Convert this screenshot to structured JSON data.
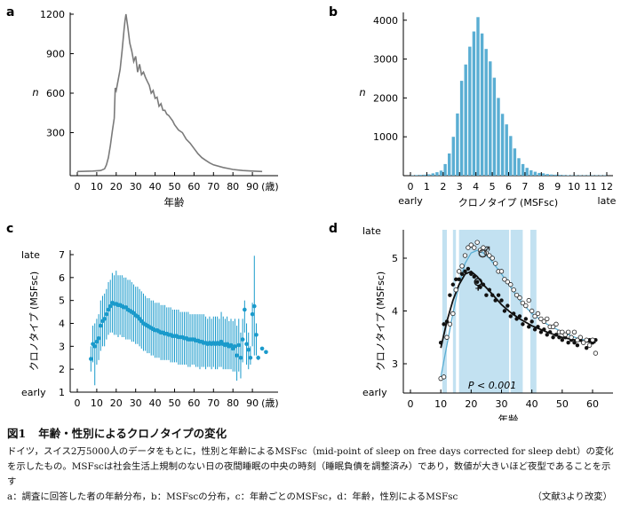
{
  "chart_data": [
    {
      "panel": "a",
      "type": "line",
      "xlabel": "年齢",
      "ylabel": "n",
      "xunit": "(歳)",
      "xlim": [
        0,
        100
      ],
      "ylim": [
        0,
        1200
      ],
      "xticks": [
        "0",
        "10",
        "20",
        "30",
        "40",
        "50",
        "60",
        "70",
        "80",
        "90"
      ],
      "yticks": [
        "300",
        "600",
        "900",
        "1200"
      ],
      "color": "#7a7a7a",
      "x": [
        0,
        4,
        8,
        12,
        14,
        15,
        16,
        17,
        18,
        19,
        19.5,
        20,
        21,
        22,
        23,
        24,
        24.5,
        25,
        26,
        27,
        28,
        29,
        30,
        31,
        32,
        33,
        34,
        35,
        36,
        37,
        38,
        39,
        40,
        41,
        42,
        43,
        44,
        45,
        46,
        47,
        48,
        49,
        50,
        52,
        54,
        56,
        58,
        60,
        62,
        64,
        66,
        68,
        70,
        75,
        80,
        85,
        90,
        95
      ],
      "y": [
        5,
        6,
        8,
        12,
        25,
        55,
        110,
        200,
        310,
        410,
        640,
        620,
        700,
        780,
        920,
        1080,
        1150,
        1200,
        1100,
        980,
        920,
        840,
        880,
        760,
        820,
        740,
        760,
        720,
        690,
        660,
        600,
        620,
        560,
        570,
        500,
        520,
        470,
        470,
        440,
        430,
        410,
        390,
        360,
        320,
        300,
        250,
        220,
        180,
        140,
        110,
        90,
        70,
        55,
        35,
        20,
        12,
        8,
        5
      ]
    },
    {
      "panel": "b",
      "type": "bar",
      "xlabel": "クロノタイプ (MSFsc)",
      "ylabel": "n",
      "xlim": [
        0,
        12
      ],
      "ylim": [
        0,
        4200
      ],
      "xticks": [
        "0",
        "1",
        "2",
        "3",
        "4",
        "5",
        "6",
        "7",
        "8",
        "9",
        "10",
        "11",
        "12"
      ],
      "yticks": [
        "1000",
        "2000",
        "3000",
        "4000"
      ],
      "xmin_label": "early",
      "xmax_label": "late",
      "color": "#5aaed3",
      "bin_width": 0.25,
      "x": [
        0,
        0.25,
        0.5,
        0.75,
        1.0,
        1.25,
        1.5,
        1.75,
        2.0,
        2.25,
        2.5,
        2.75,
        3.0,
        3.25,
        3.5,
        3.75,
        4.0,
        4.25,
        4.5,
        4.75,
        5.0,
        5.25,
        5.5,
        5.75,
        6.0,
        6.25,
        6.5,
        6.75,
        7.0,
        7.25,
        7.5,
        7.75,
        8.0,
        8.25,
        8.5,
        8.75,
        9.0,
        9.25,
        9.5,
        9.75,
        10.0,
        10.25,
        10.5,
        10.75,
        11.0,
        11.25,
        11.5,
        11.75
      ],
      "values": [
        10,
        15,
        20,
        25,
        35,
        60,
        90,
        130,
        300,
        570,
        1000,
        1600,
        2440,
        2860,
        3320,
        3710,
        4080,
        3660,
        3260,
        2940,
        2520,
        2000,
        1590,
        1320,
        1020,
        700,
        450,
        300,
        200,
        140,
        100,
        70,
        60,
        40,
        30,
        25,
        20,
        15,
        12,
        10,
        10,
        10,
        8,
        8,
        8,
        8,
        8,
        8
      ]
    },
    {
      "panel": "c",
      "type": "scatter",
      "xlabel": "年齢",
      "ylabel": "クロノタイプ (MSFsc)",
      "xunit": "(歳)",
      "xlim": [
        0,
        100
      ],
      "ylim": [
        1,
        7
      ],
      "xticks": [
        "0",
        "10",
        "20",
        "30",
        "40",
        "50",
        "60",
        "70",
        "80",
        "90"
      ],
      "yticks": [
        "1",
        "2",
        "3",
        "4",
        "5",
        "6",
        "7"
      ],
      "ymin_label": "early",
      "ymax_label": "late",
      "color": "#1a9acb",
      "points": [
        [
          7,
          2.45,
          1.9,
          3.0
        ],
        [
          8,
          3.1,
          2.3,
          3.9
        ],
        [
          9,
          3.0,
          1.3,
          4.0
        ],
        [
          10,
          3.2,
          2.2,
          4.2
        ],
        [
          11,
          3.35,
          2.4,
          4.4
        ],
        [
          12,
          3.9,
          2.8,
          5.0
        ],
        [
          13,
          4.1,
          3.0,
          5.2
        ],
        [
          14,
          4.2,
          3.0,
          5.3
        ],
        [
          15,
          4.4,
          3.3,
          5.5
        ],
        [
          16,
          4.6,
          3.5,
          5.8
        ],
        [
          17,
          4.75,
          3.6,
          5.9
        ],
        [
          18,
          4.9,
          3.6,
          6.2
        ],
        [
          19,
          4.85,
          3.5,
          6.1
        ],
        [
          20,
          4.85,
          3.5,
          6.3
        ],
        [
          21,
          4.8,
          3.4,
          6.1
        ],
        [
          22,
          4.8,
          3.5,
          6.1
        ],
        [
          23,
          4.75,
          3.4,
          6.1
        ],
        [
          24,
          4.7,
          3.4,
          6.0
        ],
        [
          25,
          4.7,
          3.3,
          6.0
        ],
        [
          26,
          4.6,
          3.3,
          5.9
        ],
        [
          27,
          4.55,
          3.3,
          5.9
        ],
        [
          28,
          4.5,
          3.2,
          5.8
        ],
        [
          29,
          4.45,
          3.2,
          5.7
        ],
        [
          30,
          4.35,
          3.1,
          5.6
        ],
        [
          31,
          4.3,
          3.1,
          5.6
        ],
        [
          32,
          4.2,
          3.0,
          5.5
        ],
        [
          33,
          4.1,
          2.9,
          5.4
        ],
        [
          34,
          4.0,
          2.8,
          5.3
        ],
        [
          35,
          3.95,
          2.8,
          5.2
        ],
        [
          36,
          3.9,
          2.7,
          5.1
        ],
        [
          37,
          3.85,
          2.7,
          5.1
        ],
        [
          38,
          3.8,
          2.6,
          5.0
        ],
        [
          39,
          3.75,
          2.6,
          5.0
        ],
        [
          40,
          3.7,
          2.5,
          4.9
        ],
        [
          41,
          3.7,
          2.5,
          4.9
        ],
        [
          42,
          3.65,
          2.5,
          4.9
        ],
        [
          43,
          3.6,
          2.4,
          4.8
        ],
        [
          44,
          3.6,
          2.4,
          4.8
        ],
        [
          45,
          3.55,
          2.4,
          4.8
        ],
        [
          46,
          3.55,
          2.4,
          4.7
        ],
        [
          47,
          3.5,
          2.4,
          4.7
        ],
        [
          48,
          3.5,
          2.3,
          4.7
        ],
        [
          49,
          3.45,
          2.3,
          4.6
        ],
        [
          50,
          3.45,
          2.3,
          4.6
        ],
        [
          51,
          3.45,
          2.3,
          4.6
        ],
        [
          52,
          3.4,
          2.2,
          4.6
        ],
        [
          53,
          3.4,
          2.2,
          4.5
        ],
        [
          54,
          3.4,
          2.2,
          4.5
        ],
        [
          55,
          3.35,
          2.2,
          4.5
        ],
        [
          56,
          3.35,
          2.2,
          4.5
        ],
        [
          57,
          3.3,
          2.1,
          4.5
        ],
        [
          58,
          3.3,
          2.1,
          4.4
        ],
        [
          59,
          3.3,
          2.2,
          4.4
        ],
        [
          60,
          3.3,
          2.2,
          4.4
        ],
        [
          61,
          3.25,
          2.1,
          4.4
        ],
        [
          62,
          3.25,
          2.1,
          4.4
        ],
        [
          63,
          3.2,
          2.0,
          4.4
        ],
        [
          64,
          3.2,
          2.1,
          4.4
        ],
        [
          65,
          3.15,
          2.1,
          4.4
        ],
        [
          66,
          3.15,
          2.0,
          4.3
        ],
        [
          67,
          3.1,
          2.1,
          4.2
        ],
        [
          68,
          3.15,
          2.1,
          4.3
        ],
        [
          69,
          3.1,
          2.0,
          4.2
        ],
        [
          70,
          3.15,
          2.1,
          4.3
        ],
        [
          71,
          3.1,
          2.0,
          4.3
        ],
        [
          72,
          3.15,
          2.0,
          4.3
        ],
        [
          73,
          3.1,
          2.1,
          4.2
        ],
        [
          74,
          3.2,
          2.1,
          4.5
        ],
        [
          75,
          3.1,
          2.0,
          4.3
        ],
        [
          76,
          3.05,
          2.0,
          4.2
        ],
        [
          77,
          3.1,
          2.0,
          4.3
        ],
        [
          78,
          3.0,
          2.0,
          4.1
        ],
        [
          79,
          3.05,
          2.0,
          4.2
        ],
        [
          80,
          2.9,
          1.9,
          4.1
        ],
        [
          81,
          3.0,
          1.9,
          4.2
        ],
        [
          82,
          2.6,
          1.5,
          3.9
        ],
        [
          83,
          3.05,
          1.9,
          4.2
        ],
        [
          84,
          2.5,
          1.6,
          3.6
        ],
        [
          85,
          3.3,
          2.3,
          4.2
        ],
        [
          86,
          4.6,
          3.6,
          5.0
        ],
        [
          87,
          3.1,
          2.2,
          4.0
        ],
        [
          88,
          2.85,
          2.0,
          3.6
        ],
        [
          89,
          2.5,
          2.2,
          3.0
        ],
        [
          90,
          4.4,
          3.0,
          4.9
        ],
        [
          91,
          4.75,
          2.6,
          6.95
        ],
        [
          92,
          3.5,
          2.6,
          4.0
        ],
        [
          93,
          2.5,
          2.4,
          2.6
        ],
        [
          95,
          2.9,
          2.9,
          2.9
        ],
        [
          97,
          2.75,
          2.75,
          2.75
        ]
      ]
    },
    {
      "panel": "d",
      "type": "scatter",
      "xlabel": "年齢",
      "ylabel": "クロノタイプ (MSFsc)",
      "xlim": [
        0,
        62
      ],
      "ylim": [
        2.5,
        5.6
      ],
      "xticks": [
        "0",
        "10",
        "20",
        "30",
        "40",
        "50",
        "60"
      ],
      "yticks": [
        "3",
        "4",
        "5"
      ],
      "ymin_label": "early",
      "ymax_label": "late",
      "annotation": "P < 0.001",
      "significance_color": "#c2e1f1",
      "significance_bands": [
        [
          10.5,
          12
        ],
        [
          14,
          15
        ],
        [
          16,
          32.5
        ],
        [
          33,
          37
        ],
        [
          39.5,
          41.5
        ]
      ],
      "series": [
        {
          "name": "♂",
          "marker": "open-circle",
          "color": "#5aaed3",
          "x": [
            10,
            11,
            12,
            13,
            14,
            15,
            16,
            17,
            18,
            19,
            20,
            21,
            22,
            23,
            24,
            25,
            26,
            27,
            28,
            29,
            30,
            31,
            32,
            33,
            34,
            35,
            36,
            37,
            38,
            39,
            40,
            41,
            42,
            43,
            44,
            45,
            46,
            47,
            48,
            49,
            50,
            51,
            52,
            53,
            54,
            55,
            56,
            57,
            58,
            59,
            60,
            61
          ],
          "y": [
            2.72,
            2.75,
            3.5,
            3.75,
            3.95,
            4.4,
            4.75,
            4.85,
            5.05,
            5.2,
            5.25,
            5.2,
            5.3,
            5.15,
            5.2,
            5.1,
            5.05,
            5.0,
            4.9,
            4.75,
            4.75,
            4.6,
            4.55,
            4.5,
            4.4,
            4.3,
            4.25,
            4.15,
            4.1,
            4.2,
            4.0,
            3.9,
            3.95,
            3.85,
            3.8,
            3.85,
            3.7,
            3.7,
            3.75,
            3.6,
            3.6,
            3.55,
            3.6,
            3.5,
            3.6,
            3.45,
            3.5,
            3.4,
            3.45,
            3.35,
            3.45,
            3.2
          ],
          "fit_x": [
            10,
            12,
            14,
            16,
            18,
            20,
            22,
            24,
            26,
            28,
            30,
            33,
            36,
            40,
            45,
            50,
            55,
            61
          ],
          "fit_y": [
            2.75,
            3.35,
            3.95,
            4.5,
            4.9,
            5.1,
            5.15,
            5.1,
            5.0,
            4.85,
            4.7,
            4.45,
            4.2,
            3.95,
            3.75,
            3.6,
            3.48,
            3.4
          ]
        },
        {
          "name": "♀",
          "marker": "filled-circle",
          "color": "#111111",
          "x": [
            10,
            11,
            12,
            13,
            14,
            15,
            16,
            17,
            18,
            19,
            20,
            21,
            22,
            23,
            24,
            25,
            26,
            27,
            28,
            29,
            30,
            31,
            32,
            33,
            34,
            35,
            36,
            37,
            38,
            39,
            40,
            41,
            42,
            43,
            44,
            45,
            46,
            47,
            48,
            49,
            50,
            51,
            52,
            53,
            54,
            55,
            56,
            57,
            58,
            59,
            60,
            61
          ],
          "y": [
            3.4,
            3.75,
            3.8,
            4.3,
            4.5,
            4.6,
            4.6,
            4.7,
            4.75,
            4.8,
            4.7,
            4.65,
            4.55,
            4.45,
            4.5,
            4.3,
            4.4,
            4.3,
            4.2,
            4.3,
            4.2,
            4.0,
            4.1,
            3.9,
            3.95,
            3.85,
            3.9,
            3.75,
            3.85,
            3.7,
            3.8,
            3.65,
            3.7,
            3.6,
            3.65,
            3.55,
            3.6,
            3.5,
            3.55,
            3.5,
            3.45,
            3.5,
            3.4,
            3.45,
            3.4,
            3.35,
            3.45,
            3.4,
            3.3,
            3.45,
            3.4,
            3.45
          ],
          "fit_x": [
            10,
            12,
            14,
            16,
            18,
            20,
            22,
            24,
            26,
            28,
            30,
            33,
            36,
            40,
            45,
            50,
            55,
            61
          ],
          "fit_y": [
            3.3,
            3.8,
            4.2,
            4.5,
            4.7,
            4.75,
            4.65,
            4.5,
            4.38,
            4.25,
            4.12,
            3.97,
            3.85,
            3.72,
            3.6,
            3.5,
            3.44,
            3.4
          ]
        }
      ]
    }
  ],
  "caption": {
    "fig_no": "図1",
    "title": "年齢・性別によるクロノタイプの変化",
    "body": "ドイツ，スイス2万5000人のデータをもとに，性別と年齢によるMSFsc（mid-point of sleep on free days corrected for sleep debt）の変化を示したもの。MSFscは社会生活上規制のない日の夜間睡眠の中央の時刻（睡眠負債を調整済み）であり，数値が大きいほど夜型であることを示す",
    "legend": "a：調査に回答した者の年齢分布，b：MSFscの分布，c：年齢ごとのMSFsc，d：年齢，性別によるMSFsc",
    "source": "（文献3より改変）"
  }
}
